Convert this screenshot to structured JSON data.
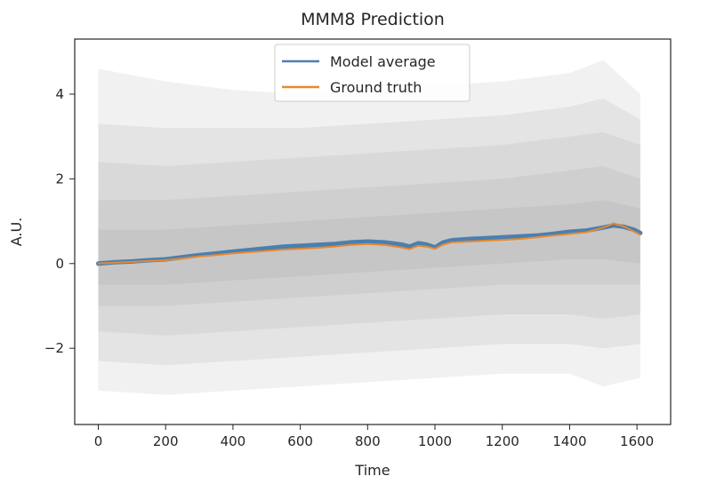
{
  "chart_data": {
    "type": "line",
    "title": "MMM8 Prediction",
    "xlabel": "Time",
    "ylabel": "A.U.",
    "xlim": [
      -70,
      1700
    ],
    "ylim": [
      -3.8,
      5.3
    ],
    "xticks": [
      0,
      200,
      400,
      600,
      800,
      1000,
      1200,
      1400,
      1600
    ],
    "yticks": [
      -2,
      0,
      2,
      4
    ],
    "ytick_labels": [
      "−2",
      "0",
      "2",
      "4"
    ],
    "grid": false,
    "legend_position": "top-center",
    "series": [
      {
        "name": "Model average",
        "color": "#4a7fb0",
        "x": [
          0,
          50,
          100,
          150,
          200,
          250,
          300,
          350,
          400,
          450,
          500,
          550,
          600,
          650,
          700,
          750,
          800,
          850,
          900,
          925,
          950,
          975,
          1000,
          1025,
          1050,
          1100,
          1150,
          1200,
          1250,
          1300,
          1350,
          1400,
          1450,
          1500,
          1530,
          1560,
          1590,
          1610
        ],
        "y": [
          0.0,
          0.03,
          0.05,
          0.08,
          0.1,
          0.15,
          0.2,
          0.24,
          0.28,
          0.32,
          0.36,
          0.4,
          0.42,
          0.44,
          0.46,
          0.5,
          0.52,
          0.5,
          0.45,
          0.4,
          0.48,
          0.45,
          0.38,
          0.5,
          0.55,
          0.58,
          0.6,
          0.62,
          0.64,
          0.66,
          0.7,
          0.75,
          0.78,
          0.85,
          0.9,
          0.87,
          0.8,
          0.72
        ]
      },
      {
        "name": "Ground truth",
        "color": "#e8892d",
        "x": [
          0,
          50,
          100,
          150,
          200,
          250,
          300,
          350,
          400,
          450,
          500,
          550,
          600,
          650,
          700,
          750,
          800,
          850,
          900,
          925,
          950,
          975,
          1000,
          1025,
          1050,
          1100,
          1150,
          1200,
          1250,
          1300,
          1350,
          1400,
          1450,
          1500,
          1530,
          1560,
          1590,
          1610
        ],
        "y": [
          0.0,
          0.02,
          0.04,
          0.06,
          0.08,
          0.12,
          0.17,
          0.2,
          0.24,
          0.27,
          0.3,
          0.33,
          0.35,
          0.37,
          0.4,
          0.44,
          0.46,
          0.44,
          0.38,
          0.34,
          0.42,
          0.4,
          0.35,
          0.45,
          0.5,
          0.52,
          0.54,
          0.56,
          0.58,
          0.62,
          0.66,
          0.7,
          0.74,
          0.85,
          0.95,
          0.88,
          0.76,
          0.68
        ]
      }
    ],
    "uncertainty_bands": {
      "color": "#8c8c8c",
      "x": [
        0,
        200,
        400,
        600,
        800,
        1000,
        1200,
        1400,
        1500,
        1610
      ],
      "bands": [
        {
          "lower": [
            -3.0,
            -3.1,
            -3.0,
            -2.9,
            -2.8,
            -2.7,
            -2.6,
            -2.6,
            -2.9,
            -2.7
          ],
          "upper": [
            4.6,
            4.3,
            4.1,
            4.0,
            4.1,
            4.2,
            4.3,
            4.5,
            4.8,
            4.0
          ]
        },
        {
          "lower": [
            -2.3,
            -2.4,
            -2.3,
            -2.2,
            -2.1,
            -2.0,
            -1.9,
            -1.9,
            -2.0,
            -1.9
          ],
          "upper": [
            3.3,
            3.2,
            3.2,
            3.2,
            3.3,
            3.4,
            3.5,
            3.7,
            3.9,
            3.4
          ]
        },
        {
          "lower": [
            -1.6,
            -1.7,
            -1.6,
            -1.5,
            -1.4,
            -1.3,
            -1.2,
            -1.2,
            -1.3,
            -1.2
          ],
          "upper": [
            2.4,
            2.3,
            2.4,
            2.5,
            2.6,
            2.7,
            2.8,
            3.0,
            3.1,
            2.8
          ]
        },
        {
          "lower": [
            -1.0,
            -1.0,
            -0.9,
            -0.8,
            -0.7,
            -0.6,
            -0.5,
            -0.5,
            -0.5,
            -0.5
          ],
          "upper": [
            1.5,
            1.5,
            1.6,
            1.7,
            1.8,
            1.9,
            2.0,
            2.2,
            2.3,
            2.0
          ]
        },
        {
          "lower": [
            -0.5,
            -0.5,
            -0.4,
            -0.3,
            -0.2,
            -0.1,
            0.0,
            0.1,
            0.1,
            0.0
          ],
          "upper": [
            0.8,
            0.8,
            0.9,
            1.0,
            1.1,
            1.2,
            1.3,
            1.4,
            1.5,
            1.3
          ]
        }
      ]
    }
  }
}
